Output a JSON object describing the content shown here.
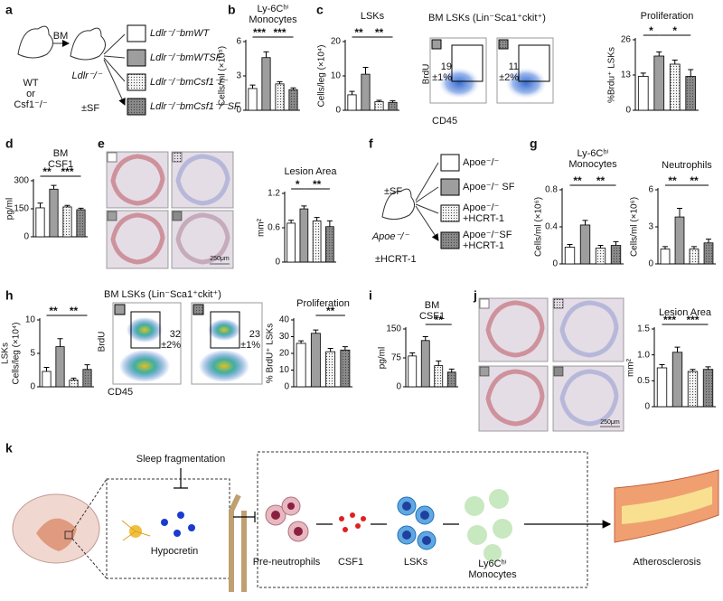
{
  "panel_letters": [
    "a",
    "b",
    "c",
    "d",
    "e",
    "f",
    "g",
    "h",
    "i",
    "j",
    "k"
  ],
  "panel_a": {
    "transfer": "BM",
    "donor": [
      "WT",
      "or",
      "Csf1⁻/⁻"
    ],
    "recipient": "Ldlr⁻/⁻",
    "treatment": "±SF",
    "groups": [
      "Ldlr⁻/⁻bmWT",
      "Ldlr⁻/⁻bmWTSF",
      "Ldlr⁻/⁻bmCsf1⁻/⁻",
      "Ldlr⁻/⁻bmCsf1⁻/⁻SF"
    ]
  },
  "flow_c": {
    "title": "BM LSKs (Lin⁻Sca1⁺ckit⁺)",
    "ylabel": "BrdU",
    "xlabel": "CD45",
    "gates": [
      [
        "19",
        "±1%"
      ],
      [
        "11",
        "±2%"
      ]
    ]
  },
  "flow_h": {
    "title": "BM LSKs (Lin⁻Sca1⁺ckit⁺)",
    "ylabel": "BrdU",
    "xlabel": "CD45",
    "gates": [
      [
        "32",
        "±2%"
      ],
      [
        "23",
        "±1%"
      ]
    ]
  },
  "scale_e": "250μm",
  "scale_j": "250μm",
  "panel_f": {
    "treatment": "±SF",
    "mouse": "Apoe⁻/⁻",
    "treatment2": "±HCRT-1",
    "groups": [
      [
        "Apoe⁻/⁻"
      ],
      [
        "Apoe⁻/⁻ SF"
      ],
      [
        "Apoe⁻/⁻",
        "+HCRT-1"
      ],
      [
        "Apoe⁻/⁻SF",
        "+HCRT-1"
      ]
    ]
  },
  "panel_k": {
    "inhibitor": "Sleep fragmentation",
    "neuro": "Hypocretin",
    "steps": [
      [
        "Pre-neutrophils"
      ],
      [
        "CSF1"
      ],
      [
        "LSKs"
      ],
      [
        "Ly6Cʰⁱ",
        "Monocytes"
      ]
    ],
    "outcome": "Atherosclerosis"
  },
  "chart_data": [
    {
      "type": "bar",
      "title": [
        "Ly-6Cʰⁱ",
        "Monocytes"
      ],
      "ylabel": [
        "Cells/ml (×10⁵)"
      ],
      "values": [
        1.9,
        4.6,
        2.3,
        1.8
      ],
      "errors": [
        0.3,
        0.5,
        0.2,
        0.15
      ],
      "ylim": [
        0,
        6
      ],
      "yticks": [
        0,
        3,
        6
      ],
      "colors": [
        "#ffffff",
        "#9e9e9e",
        "#f4f4f4",
        "#8a8a8a"
      ],
      "dotted": [
        false,
        false,
        true,
        true
      ],
      "significance": [
        {
          "from": 0,
          "to": 1,
          "label": "***"
        },
        {
          "from": 1,
          "to": 3,
          "label": "***"
        }
      ]
    },
    {
      "type": "bar",
      "title": [
        "LSKs"
      ],
      "ylabel": [
        "Cells/leg (×10⁴)"
      ],
      "values": [
        4.5,
        10.5,
        2.5,
        2.3
      ],
      "errors": [
        1,
        2,
        0.4,
        0.5
      ],
      "ylim": [
        0,
        20
      ],
      "yticks": [
        0,
        10,
        20
      ],
      "colors": [
        "#ffffff",
        "#9e9e9e",
        "#f4f4f4",
        "#8a8a8a"
      ],
      "dotted": [
        false,
        false,
        true,
        true
      ],
      "significance": [
        {
          "from": 0,
          "to": 1,
          "label": "**"
        },
        {
          "from": 1,
          "to": 3,
          "label": "**"
        }
      ]
    },
    {
      "type": "bar",
      "title": [
        "Proliferation"
      ],
      "ylabel": [
        "%Brdu⁺ LSKs"
      ],
      "values": [
        12.5,
        20,
        17,
        12.5
      ],
      "errors": [
        1.2,
        1.5,
        1.5,
        2.5
      ],
      "ylim": [
        0,
        26
      ],
      "yticks": [
        0,
        13,
        26
      ],
      "colors": [
        "#ffffff",
        "#9e9e9e",
        "#f4f4f4",
        "#8a8a8a"
      ],
      "dotted": [
        false,
        false,
        true,
        true
      ],
      "significance": [
        {
          "from": 0,
          "to": 1,
          "label": "*"
        },
        {
          "from": 1,
          "to": 3,
          "label": "*"
        }
      ]
    },
    {
      "type": "bar",
      "title": [
        "BM",
        "CSF1"
      ],
      "ylabel": [
        "pg/ml"
      ],
      "values": [
        155,
        255,
        160,
        145
      ],
      "errors": [
        25,
        20,
        8,
        8
      ],
      "ylim": [
        0,
        300
      ],
      "yticks": [
        0,
        150,
        300
      ],
      "colors": [
        "#ffffff",
        "#9e9e9e",
        "#f4f4f4",
        "#8a8a8a"
      ],
      "dotted": [
        false,
        false,
        true,
        true
      ],
      "significance": [
        {
          "from": 0,
          "to": 1,
          "label": "**"
        },
        {
          "from": 1,
          "to": 3,
          "label": "***"
        }
      ]
    },
    {
      "type": "bar",
      "title": [
        "Lesion Area"
      ],
      "ylabel": [
        "mm²"
      ],
      "values": [
        0.68,
        0.93,
        0.72,
        0.62
      ],
      "errors": [
        0.05,
        0.05,
        0.06,
        0.1
      ],
      "ylim": [
        0,
        1.2
      ],
      "yticks": [
        0,
        0.6,
        1.2
      ],
      "colors": [
        "#ffffff",
        "#9e9e9e",
        "#f4f4f4",
        "#8a8a8a"
      ],
      "dotted": [
        false,
        false,
        true,
        true
      ],
      "significance": [
        {
          "from": 0,
          "to": 1,
          "label": "*"
        },
        {
          "from": 1,
          "to": 3,
          "label": "**"
        }
      ]
    },
    {
      "type": "bar",
      "title": [
        "Ly-6Cʰⁱ",
        "Monocytes"
      ],
      "ylabel": [
        "Cells/ml (×10⁶)"
      ],
      "values": [
        0.18,
        0.42,
        0.17,
        0.2
      ],
      "errors": [
        0.03,
        0.05,
        0.03,
        0.04
      ],
      "ylim": [
        0,
        0.8
      ],
      "yticks": [
        0,
        0.4,
        0.8
      ],
      "colors": [
        "#ffffff",
        "#9e9e9e",
        "#f4f4f4",
        "#8a8a8a"
      ],
      "dotted": [
        false,
        false,
        true,
        true
      ],
      "significance": [
        {
          "from": 0,
          "to": 1,
          "label": "**"
        },
        {
          "from": 1,
          "to": 3,
          "label": "**"
        }
      ]
    },
    {
      "type": "bar",
      "title": [
        "Neutrophils"
      ],
      "ylabel": [
        "Cells/ml (×10⁶)"
      ],
      "values": [
        1.2,
        3.8,
        1.2,
        1.7
      ],
      "errors": [
        0.2,
        0.7,
        0.2,
        0.3
      ],
      "ylim": [
        0,
        6
      ],
      "yticks": [
        0,
        3,
        6
      ],
      "colors": [
        "#ffffff",
        "#9e9e9e",
        "#f4f4f4",
        "#8a8a8a"
      ],
      "dotted": [
        false,
        false,
        true,
        true
      ],
      "significance": [
        {
          "from": 0,
          "to": 1,
          "label": "**"
        },
        {
          "from": 1,
          "to": 3,
          "label": "**"
        }
      ]
    },
    {
      "type": "bar",
      "ylabel": [
        "LSKs",
        "Cells/leg (×10⁴)"
      ],
      "values": [
        2.3,
        6,
        1,
        2.6
      ],
      "errors": [
        0.6,
        1.2,
        0.3,
        0.7
      ],
      "ylim": [
        0,
        10
      ],
      "yticks": [
        0,
        5,
        10
      ],
      "colors": [
        "#ffffff",
        "#9e9e9e",
        "#f4f4f4",
        "#8a8a8a"
      ],
      "dotted": [
        false,
        false,
        true,
        true
      ],
      "significance": [
        {
          "from": 0,
          "to": 1,
          "label": "**"
        },
        {
          "from": 1,
          "to": 3,
          "label": "**"
        }
      ]
    },
    {
      "type": "bar",
      "title": [
        "Proliferation"
      ],
      "ylabel": [
        "% BrdU⁺ LSKs"
      ],
      "values": [
        26,
        32,
        21,
        22
      ],
      "errors": [
        1.5,
        2,
        2,
        2
      ],
      "ylim": [
        0,
        40
      ],
      "yticks": [
        0,
        10,
        20,
        30,
        40
      ],
      "colors": [
        "#ffffff",
        "#9e9e9e",
        "#f4f4f4",
        "#8a8a8a"
      ],
      "dotted": [
        false,
        false,
        true,
        true
      ],
      "significance": [
        {
          "from": 1,
          "to": 3,
          "label": "**"
        }
      ]
    },
    {
      "type": "bar",
      "title": [
        "BM",
        "CSF1"
      ],
      "ylabel": [
        "pg/ml"
      ],
      "values": [
        80,
        120,
        55,
        38
      ],
      "errors": [
        8,
        10,
        12,
        8
      ],
      "ylim": [
        0,
        150
      ],
      "yticks": [
        0,
        75,
        150
      ],
      "colors": [
        "#ffffff",
        "#9e9e9e",
        "#f4f4f4",
        "#8a8a8a"
      ],
      "dotted": [
        false,
        false,
        true,
        true
      ],
      "significance": [
        {
          "from": 1,
          "to": 3,
          "label": "**"
        }
      ]
    },
    {
      "type": "bar",
      "title": [
        "Lesion Area"
      ],
      "ylabel": [
        "mm²"
      ],
      "values": [
        0.75,
        1.05,
        0.68,
        0.72
      ],
      "errors": [
        0.06,
        0.1,
        0.04,
        0.05
      ],
      "ylim": [
        0,
        1.5
      ],
      "yticks": [
        0,
        0.5,
        {
          "value": 1,
          "label": "1.0"
        },
        1.5
      ],
      "colors": [
        "#ffffff",
        "#9e9e9e",
        "#f4f4f4",
        "#8a8a8a"
      ],
      "dotted": [
        false,
        false,
        true,
        true
      ],
      "significance": [
        {
          "from": 0,
          "to": 1,
          "label": "***"
        },
        {
          "from": 1,
          "to": 3,
          "label": "***"
        }
      ]
    }
  ]
}
